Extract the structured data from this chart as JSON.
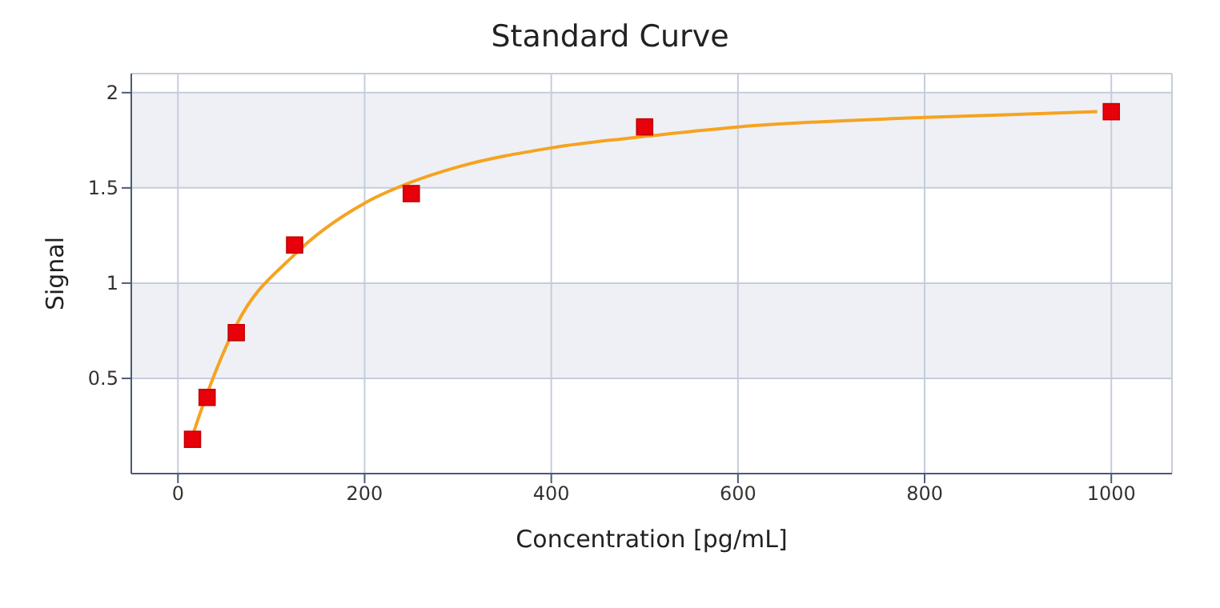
{
  "chart_data": {
    "type": "scatter",
    "title": "Standard Curve",
    "xlabel": "Concentration [pg/mL]",
    "ylabel": "Signal",
    "xlim": [
      -50,
      1065
    ],
    "xticks": [
      0,
      200,
      400,
      600,
      800,
      1000
    ],
    "ylim": [
      0,
      2.1
    ],
    "yticks": [
      0.5,
      1,
      1.5,
      2
    ],
    "grid": true,
    "series": [
      {
        "type": "line",
        "color": "#f5a320",
        "marker": "none",
        "x": [
          15.6,
          31.25,
          62.5,
          125,
          200,
          250,
          300,
          400,
          500,
          600,
          800,
          985
        ],
        "values": [
          0.2,
          0.42,
          0.78,
          1.15,
          1.42,
          1.53,
          1.61,
          1.71,
          1.77,
          1.82,
          1.87,
          1.9
        ]
      },
      {
        "type": "scatter",
        "color": "#e8000b",
        "marker": "square",
        "x": [
          15.6,
          31.25,
          62.5,
          125,
          250,
          500,
          1000
        ],
        "values": [
          0.18,
          0.4,
          0.74,
          1.2,
          1.47,
          1.82,
          1.9
        ]
      }
    ]
  }
}
